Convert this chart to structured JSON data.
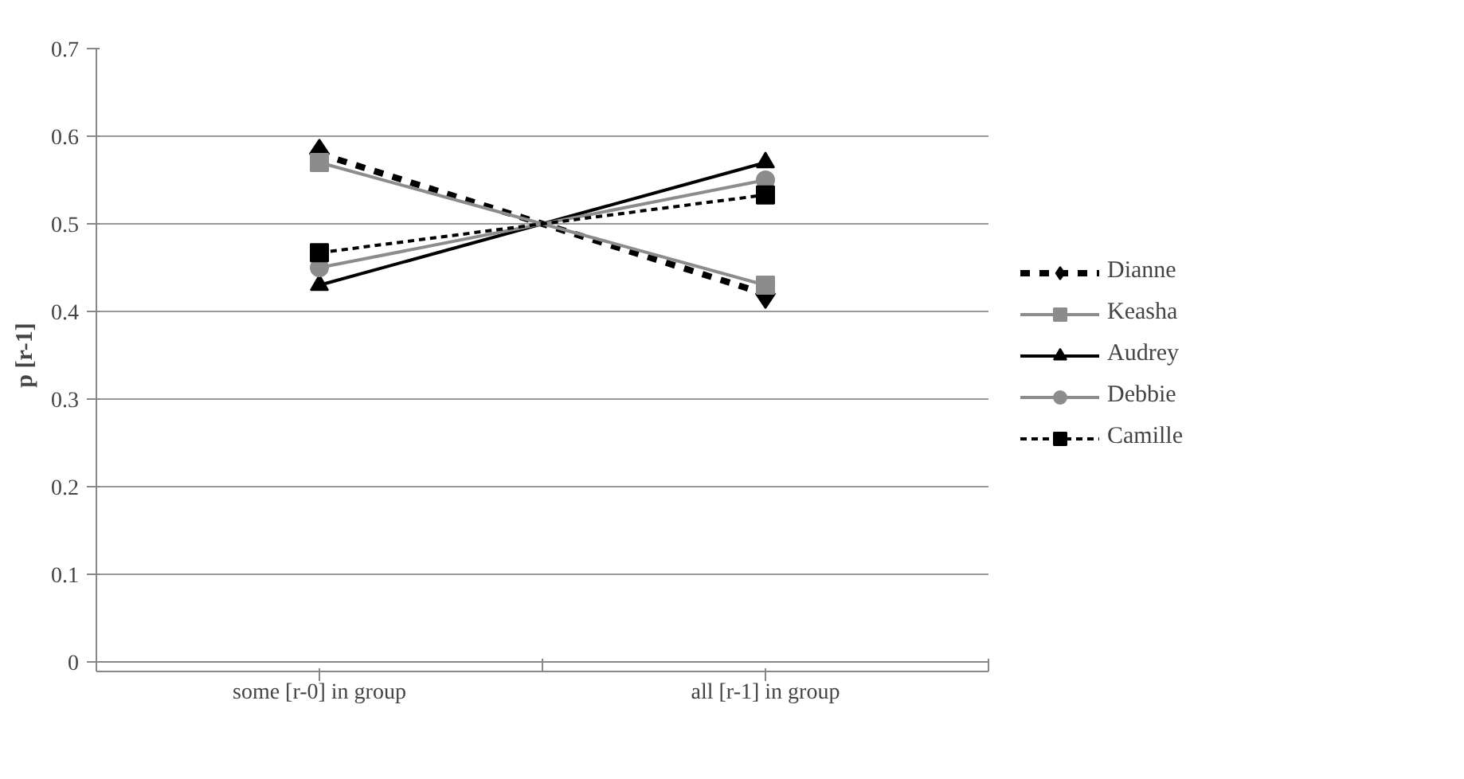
{
  "chart_data": {
    "type": "line",
    "ylabel": "p [r-1]",
    "categories": [
      "some [r-0] in group",
      "all [r-1] in group"
    ],
    "ylim": [
      0,
      0.7
    ],
    "yticks": [
      0,
      0.1,
      0.2,
      0.3,
      0.4,
      0.5,
      0.6,
      0.7
    ],
    "grid": "y",
    "legend": "right",
    "series": [
      {
        "name": "Dianne",
        "color": "#000000",
        "values": [
          0.58,
          0.42
        ],
        "marker": "diamond",
        "line_style": "dashed"
      },
      {
        "name": "Keasha",
        "color": "#8c8c8c",
        "values": [
          0.57,
          0.43
        ],
        "marker": "square",
        "line_style": "solid"
      },
      {
        "name": "Audrey",
        "color": "#000000",
        "values": [
          0.43,
          0.57
        ],
        "marker": "triangle",
        "line_style": "solid"
      },
      {
        "name": "Debbie",
        "color": "#8c8c8c",
        "values": [
          0.45,
          0.55
        ],
        "marker": "circle",
        "line_style": "solid"
      },
      {
        "name": "Camille",
        "color": "#000000",
        "values": [
          0.467,
          0.533
        ],
        "marker": "square",
        "line_style": "dotted"
      }
    ]
  }
}
